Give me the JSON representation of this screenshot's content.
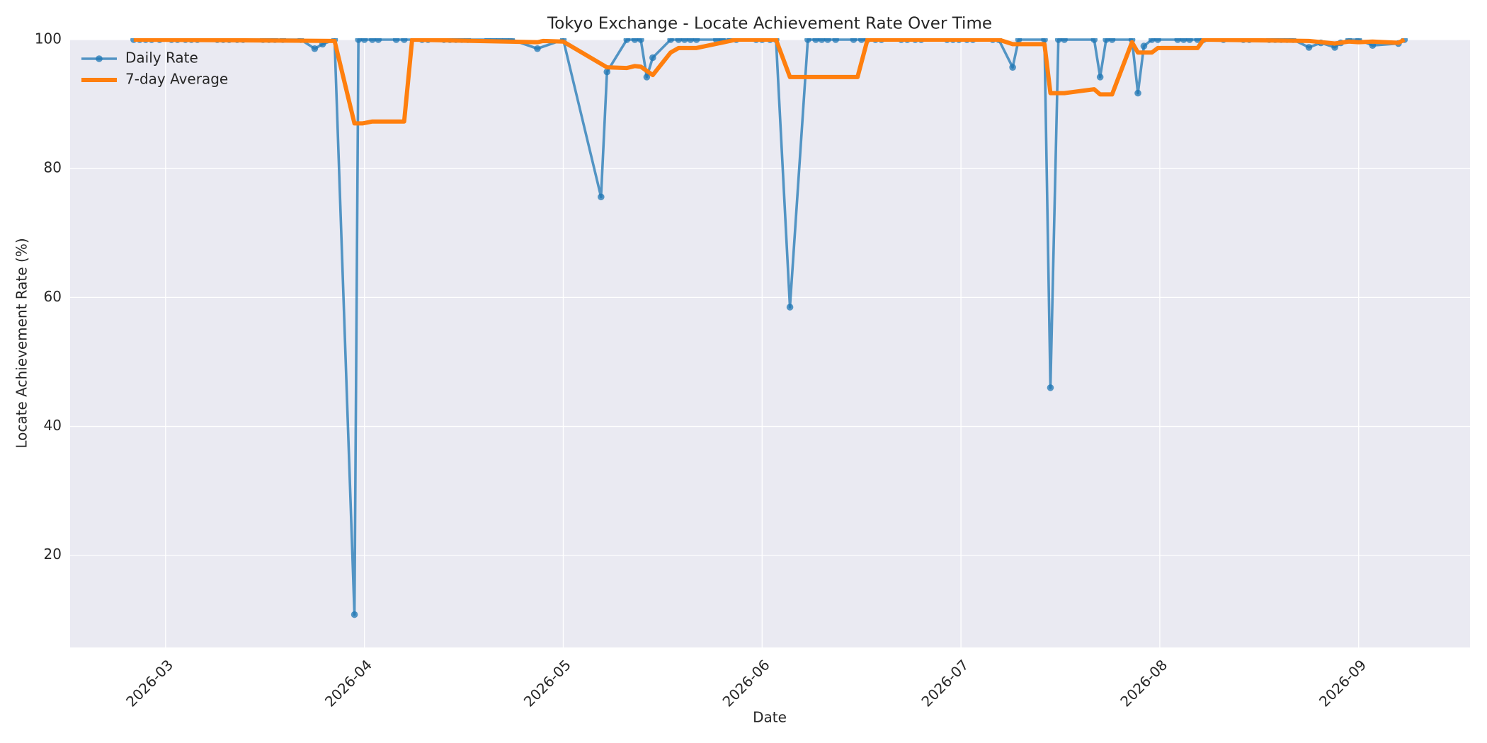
{
  "chart_data": {
    "type": "line",
    "title": "Tokyo Exchange - Locate Achievement Rate Over Time",
    "x_label": "Date",
    "y_label": "Locate Achievement Rate (%)",
    "xlim": [
      2.52,
      9.56
    ],
    "xticks": [
      {
        "value": 3,
        "label": "2026-03"
      },
      {
        "value": 4,
        "label": "2026-04"
      },
      {
        "value": 5,
        "label": "2026-05"
      },
      {
        "value": 6,
        "label": "2026-06"
      },
      {
        "value": 7,
        "label": "2026-07"
      },
      {
        "value": 8,
        "label": "2026-08"
      },
      {
        "value": 9,
        "label": "2026-09"
      }
    ],
    "ylim": [
      5.7,
      100
    ],
    "yticks": [
      20,
      40,
      60,
      80,
      100
    ],
    "grid": true,
    "legend": "upper left",
    "series": [
      {
        "name": "Daily Rate",
        "color": "#1f77b4",
        "marker": true,
        "x": [
          2.84,
          2.87,
          2.9,
          2.93,
          2.97,
          3.03,
          3.06,
          3.1,
          3.13,
          3.16,
          3.26,
          3.29,
          3.32,
          3.36,
          3.39,
          3.49,
          3.52,
          3.55,
          3.59,
          3.68,
          3.75,
          3.79,
          3.85,
          3.95,
          3.97,
          4.0,
          4.04,
          4.07,
          4.16,
          4.2,
          4.29,
          4.32,
          4.4,
          4.43,
          4.46,
          4.49,
          4.52,
          4.62,
          4.65,
          4.68,
          4.71,
          4.74,
          4.87,
          5.0,
          5.19,
          5.22,
          5.32,
          5.36,
          5.39,
          5.42,
          5.45,
          5.54,
          5.58,
          5.61,
          5.64,
          5.67,
          5.77,
          5.8,
          5.84,
          5.87,
          5.97,
          6.0,
          6.04,
          6.07,
          6.14,
          6.23,
          6.27,
          6.3,
          6.33,
          6.37,
          6.46,
          6.5,
          6.53,
          6.57,
          6.6,
          6.7,
          6.73,
          6.77,
          6.8,
          6.93,
          6.96,
          6.99,
          7.03,
          7.06,
          7.16,
          7.19,
          7.26,
          7.29,
          7.42,
          7.45,
          7.49,
          7.52,
          7.67,
          7.7,
          7.73,
          7.76,
          7.86,
          7.89,
          7.92,
          7.96,
          7.99,
          8.09,
          8.12,
          8.15,
          8.19,
          8.22,
          8.32,
          8.42,
          8.45,
          8.55,
          8.58,
          8.61,
          8.64,
          8.67,
          8.75,
          8.81,
          8.88,
          8.91,
          8.95,
          9.0,
          9.07,
          9.2,
          9.23
        ],
        "values": [
          100,
          100,
          100,
          100,
          100,
          100,
          100,
          100,
          100,
          100,
          100,
          100,
          100,
          100,
          100,
          100,
          100,
          100,
          100,
          100,
          98.6,
          99.3,
          100,
          10.8,
          100,
          100,
          100,
          100,
          100,
          100,
          100,
          100,
          100,
          100,
          100,
          100,
          100,
          100,
          100,
          100,
          100,
          100,
          98.6,
          100,
          75.6,
          95,
          100,
          100,
          100,
          94.2,
          97.2,
          100,
          100,
          100,
          100,
          100,
          100,
          100,
          100,
          100,
          100,
          100,
          100,
          100,
          58.5,
          100,
          100,
          100,
          100,
          100,
          100,
          100,
          100,
          100,
          100,
          100,
          100,
          100,
          100,
          100,
          100,
          100,
          100,
          100,
          100,
          100,
          95.7,
          100,
          100,
          46,
          100,
          100,
          100,
          94.2,
          100,
          100,
          100,
          91.7,
          99,
          100,
          100,
          100,
          100,
          100,
          100,
          100,
          100,
          100,
          100,
          100,
          100,
          100,
          100,
          100,
          98.8,
          99.5,
          98.8,
          99.5,
          100,
          100,
          99.1,
          99.4,
          100
        ]
      },
      {
        "name": "7-day Average",
        "color": "#ff7f0e",
        "marker": false,
        "x": [
          2.84,
          3.85,
          3.95,
          3.99,
          4.04,
          4.2,
          4.24,
          4.87,
          4.9,
          5.0,
          5.22,
          5.32,
          5.36,
          5.39,
          5.45,
          5.54,
          5.58,
          5.67,
          5.87,
          6.07,
          6.14,
          6.48,
          6.53,
          7.19,
          7.26,
          7.42,
          7.45,
          7.52,
          7.67,
          7.7,
          7.76,
          7.86,
          7.89,
          7.96,
          7.99,
          8.19,
          8.22,
          8.75,
          8.88,
          8.95,
          9.0,
          9.07,
          9.2,
          9.23
        ],
        "values": [
          100,
          99.8,
          87,
          87,
          87.3,
          87.3,
          100,
          99.6,
          99.8,
          99.7,
          95.7,
          95.6,
          95.9,
          95.8,
          94.5,
          98,
          98.7,
          98.7,
          100,
          100,
          94.2,
          94.2,
          100,
          100,
          99.3,
          99.3,
          91.7,
          91.7,
          92.3,
          91.5,
          91.5,
          99.6,
          98,
          98,
          98.7,
          98.7,
          100,
          99.8,
          99.4,
          99.7,
          99.6,
          99.7,
          99.5,
          100
        ]
      }
    ]
  }
}
